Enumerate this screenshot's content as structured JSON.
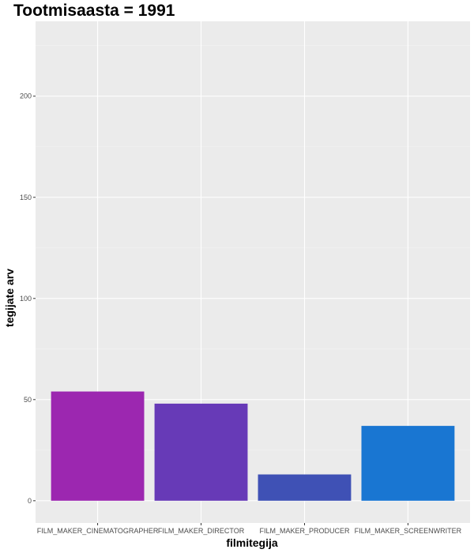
{
  "chart_data": {
    "type": "bar",
    "title": "Tootmisaasta = 1991",
    "xlabel": "filmitegija",
    "ylabel": "tegijate arv",
    "categories": [
      "FILM_MAKER_CINEMATOGRAPHER",
      "FILM_MAKER_DIRECTOR",
      "FILM_MAKER_PRODUCER",
      "FILM_MAKER_SCREENWRITER"
    ],
    "values": [
      54,
      48,
      13,
      37
    ],
    "colors": [
      "#9c27b0",
      "#673ab7",
      "#3f51b5",
      "#1976d2"
    ],
    "ylim": [
      -11,
      237
    ],
    "yticks": [
      0,
      50,
      100,
      150,
      200
    ],
    "ytick_labels": [
      "0",
      "50",
      "100",
      "150",
      "200"
    ],
    "grid": true,
    "panel_background": "#ebebeb",
    "legend": "none"
  }
}
